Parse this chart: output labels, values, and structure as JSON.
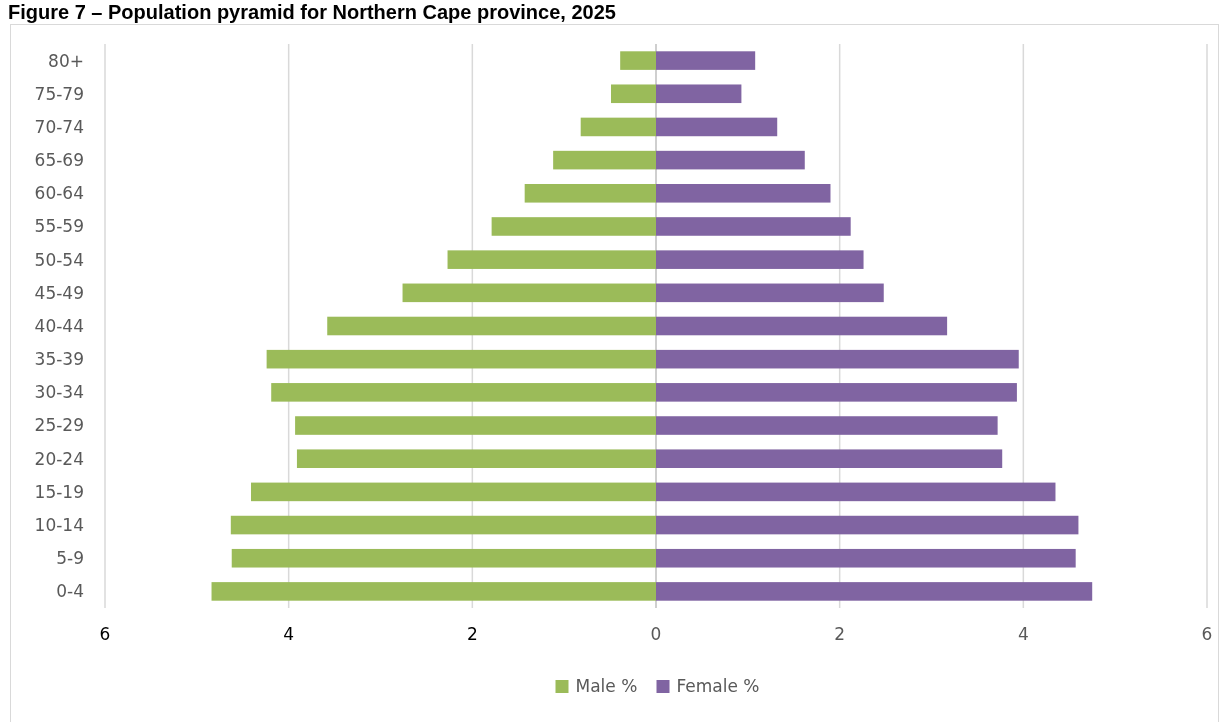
{
  "chart_data": {
    "type": "bar",
    "orientation": "horizontal",
    "stacked": true,
    "title": "Figure 7 – Population pyramid for Northern Cape province, 2025",
    "categories": [
      "80+",
      "75-79",
      "70-74",
      "65-69",
      "60-64",
      "55-59",
      "50-54",
      "45-49",
      "40-44",
      "35-39",
      "30-34",
      "25-29",
      "20-24",
      "15-19",
      "10-14",
      "5-9",
      "0-4"
    ],
    "series": [
      {
        "name": "Male %",
        "color": "#9bbb59",
        "values": [
          -0.39,
          -0.49,
          -0.82,
          -1.12,
          -1.43,
          -1.79,
          -2.27,
          -2.76,
          -3.58,
          -4.24,
          -4.19,
          -3.93,
          -3.91,
          -4.41,
          -4.63,
          -4.62,
          -4.84
        ]
      },
      {
        "name": "Female %",
        "color": "#8064a2",
        "values": [
          1.08,
          0.93,
          1.32,
          1.62,
          1.9,
          2.12,
          2.26,
          2.48,
          3.17,
          3.95,
          3.93,
          3.72,
          3.77,
          4.35,
          4.6,
          4.57,
          4.75
        ]
      }
    ],
    "xlim": [
      -6,
      6
    ],
    "xticks": [
      {
        "value": -6,
        "label": "6"
      },
      {
        "value": -4,
        "label": "4"
      },
      {
        "value": -2,
        "label": "2"
      },
      0,
      2,
      4,
      6
    ],
    "grid": "x",
    "legend": "bottom"
  }
}
